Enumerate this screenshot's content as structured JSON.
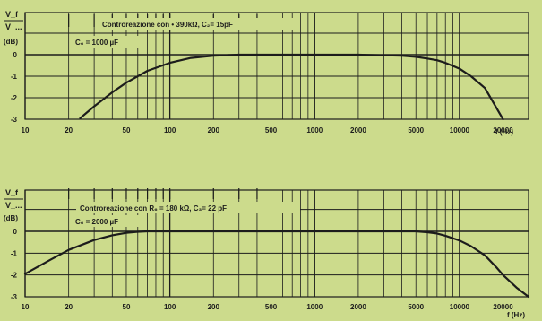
{
  "chart_data": [
    {
      "type": "line",
      "ylabel_num": "V_f",
      "ylabel_den": "V_...",
      "ylabel_unit": "(dB)",
      "xlabel": "f (Hz)",
      "x_scale": "log",
      "xlim": [
        10,
        30000
      ],
      "ylim": [
        -3,
        1
      ],
      "grid": true,
      "x_ticks": [
        "10",
        "20",
        "50",
        "100",
        "200",
        "500",
        "1000",
        "2000",
        "5000",
        "10000",
        "20000"
      ],
      "y_ticks": [
        "0",
        "-1",
        "-2",
        "-3"
      ],
      "annotation_1": "Controreazione con  • 390kΩ, C₂= 15pF",
      "annotation_2": "C₆ = 1000 µF",
      "series": [
        {
          "x": [
            24,
            30,
            40,
            50,
            70,
            100,
            140,
            200,
            300,
            600,
            1000,
            2000,
            3000,
            4000,
            5000,
            6000,
            7000,
            8000,
            10000,
            12000,
            15000,
            20000
          ],
          "y": [
            -2.95,
            -2.4,
            -1.75,
            -1.3,
            -0.75,
            -0.38,
            -0.15,
            -0.05,
            0,
            0,
            0,
            0,
            -0.03,
            -0.05,
            -0.1,
            -0.18,
            -0.26,
            -0.38,
            -0.65,
            -1.0,
            -1.55,
            -3.0
          ]
        }
      ]
    },
    {
      "type": "line",
      "ylabel_num": "V_f",
      "ylabel_den": "V_...",
      "ylabel_unit": "(dB)",
      "xlabel": "f (Hz)",
      "x_scale": "log",
      "xlim": [
        10,
        30000
      ],
      "ylim": [
        -3,
        1
      ],
      "grid": true,
      "x_ticks": [
        "10",
        "20",
        "50",
        "100",
        "200",
        "500",
        "1000",
        "2000",
        "5000",
        "10000",
        "20000"
      ],
      "y_ticks": [
        "0",
        "-1",
        "-2",
        "-3"
      ],
      "annotation_1": "Controreazione con  R₆ = 180 kΩ, C₃= 22 pF",
      "annotation_2": "C₆ = 2000 µF",
      "series": [
        {
          "x": [
            10,
            15,
            20,
            30,
            40,
            50,
            60,
            70,
            100,
            1000,
            5000,
            6000,
            7000,
            8000,
            10000,
            12000,
            15000,
            18000,
            20000,
            25000,
            30000
          ],
          "y": [
            -1.95,
            -1.3,
            -0.85,
            -0.4,
            -0.18,
            -0.07,
            -0.02,
            0,
            0,
            0,
            0,
            -0.04,
            -0.1,
            -0.2,
            -0.42,
            -0.68,
            -1.1,
            -1.65,
            -2.0,
            -2.6,
            -3.0
          ]
        }
      ]
    }
  ]
}
